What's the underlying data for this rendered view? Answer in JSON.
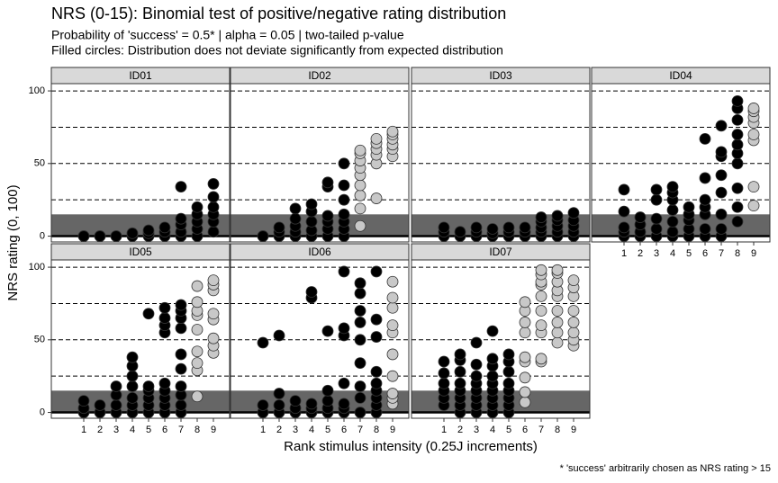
{
  "chart_data": {
    "type": "scatter",
    "title": "NRS (0-15): Binomial test of positive/negative rating distribution",
    "subtitle": [
      "Probability of 'success' = 0.5* | alpha = 0.05 | two-tailed p-value",
      "Filled circles: Distribution does not deviate significantly from expected distribution"
    ],
    "xlabel": "Rank stimulus intensity (0.25J increments)",
    "ylabel": "NRS rating (0, 100)",
    "caption": "* 'success' arbitrarily chosen as NRS rating > 15",
    "xlim": [
      -1,
      10
    ],
    "xticks": [
      1,
      2,
      3,
      4,
      5,
      6,
      7,
      8,
      9
    ],
    "ylim": [
      -4,
      105
    ],
    "yticks": [
      0,
      50,
      100
    ],
    "hlines": [
      25,
      50,
      75,
      100
    ],
    "band": [
      0,
      15
    ],
    "band_color": "#666666",
    "panels": [
      {
        "name": "ID01",
        "groups": [
          {
            "x": 1,
            "color": "#000000",
            "values": [
              0,
              0
            ]
          },
          {
            "x": 2,
            "color": "#000000",
            "values": [
              0,
              0
            ]
          },
          {
            "x": 3,
            "color": "#000000",
            "values": [
              0,
              0
            ]
          },
          {
            "x": 4,
            "color": "#000000",
            "values": [
              0,
              2
            ]
          },
          {
            "x": 5,
            "color": "#000000",
            "values": [
              0,
              2,
              4
            ]
          },
          {
            "x": 6,
            "color": "#000000",
            "values": [
              0,
              3,
              6
            ]
          },
          {
            "x": 7,
            "color": "#000000",
            "values": [
              0,
              3,
              8,
              12,
              34
            ]
          },
          {
            "x": 8,
            "color": "#000000",
            "values": [
              0,
              5,
              10,
              15,
              20
            ]
          },
          {
            "x": 9,
            "color": "#000000",
            "values": [
              3,
              10,
              15,
              20,
              27,
              36
            ]
          }
        ]
      },
      {
        "name": "ID02",
        "groups": [
          {
            "x": 1,
            "color": "#000000",
            "values": [
              0,
              0
            ]
          },
          {
            "x": 2,
            "color": "#000000",
            "values": [
              0,
              3,
              6
            ]
          },
          {
            "x": 3,
            "color": "#000000",
            "values": [
              0,
              3,
              7,
              12,
              19
            ]
          },
          {
            "x": 4,
            "color": "#000000",
            "values": [
              0,
              4,
              10,
              17,
              22
            ]
          },
          {
            "x": 5,
            "color": "#000000",
            "values": [
              0,
              5,
              10,
              14,
              34,
              37
            ]
          },
          {
            "x": 6,
            "color": "#000000",
            "values": [
              0,
              5,
              10,
              15,
              25,
              35,
              50
            ]
          },
          {
            "x": 7,
            "color": "#c8c8c8",
            "values": [
              7,
              19,
              28,
              35,
              42,
              47,
              52,
              57,
              59
            ]
          },
          {
            "x": 8,
            "color": "#c8c8c8",
            "values": [
              26,
              50,
              56,
              60,
              64,
              67
            ]
          },
          {
            "x": 9,
            "color": "#c8c8c8",
            "values": [
              55,
              60,
              63,
              67,
              70,
              72
            ]
          }
        ]
      },
      {
        "name": "ID03",
        "groups": [
          {
            "x": 1,
            "color": "#000000",
            "values": [
              0,
              3,
              6
            ]
          },
          {
            "x": 2,
            "color": "#000000",
            "values": [
              0,
              3
            ]
          },
          {
            "x": 3,
            "color": "#000000",
            "values": [
              0,
              3,
              6
            ]
          },
          {
            "x": 4,
            "color": "#000000",
            "values": [
              0,
              2,
              5
            ]
          },
          {
            "x": 5,
            "color": "#000000",
            "values": [
              0,
              3,
              6
            ]
          },
          {
            "x": 6,
            "color": "#000000",
            "values": [
              0,
              3,
              6
            ]
          },
          {
            "x": 7,
            "color": "#000000",
            "values": [
              0,
              3,
              6,
              10,
              13
            ]
          },
          {
            "x": 8,
            "color": "#000000",
            "values": [
              0,
              3,
              7,
              11,
              14
            ]
          },
          {
            "x": 9,
            "color": "#000000",
            "values": [
              0,
              3,
              7,
              11,
              16
            ]
          }
        ]
      },
      {
        "name": "ID04",
        "groups": [
          {
            "x": 1,
            "color": "#000000",
            "values": [
              0,
              3,
              6,
              17,
              32
            ]
          },
          {
            "x": 2,
            "color": "#000000",
            "values": [
              0,
              3,
              8,
              13
            ]
          },
          {
            "x": 3,
            "color": "#000000",
            "values": [
              0,
              5,
              12,
              25,
              32
            ]
          },
          {
            "x": 4,
            "color": "#000000",
            "values": [
              0,
              3,
              10,
              18,
              25,
              30,
              34
            ]
          },
          {
            "x": 5,
            "color": "#000000",
            "values": [
              0,
              5,
              11,
              15,
              20
            ]
          },
          {
            "x": 6,
            "color": "#000000",
            "values": [
              0,
              5,
              15,
              20,
              25,
              40,
              67
            ]
          },
          {
            "x": 7,
            "color": "#000000",
            "values": [
              0,
              5,
              15,
              30,
              42,
              55,
              58,
              76
            ]
          },
          {
            "x": 8,
            "color": "#000000",
            "values": [
              10,
              20,
              33,
              50,
              57,
              63,
              70,
              80,
              88,
              93
            ]
          },
          {
            "x": 9,
            "color": "#c8c8c8",
            "values": [
              21,
              34,
              66,
              70,
              78,
              82,
              86,
              88
            ]
          }
        ]
      },
      {
        "name": "ID05",
        "groups": [
          {
            "x": 1,
            "color": "#000000",
            "values": [
              0,
              3,
              8
            ]
          },
          {
            "x": 2,
            "color": "#000000",
            "values": [
              0,
              5
            ]
          },
          {
            "x": 3,
            "color": "#000000",
            "values": [
              0,
              5,
              12,
              18
            ]
          },
          {
            "x": 4,
            "color": "#000000",
            "values": [
              0,
              5,
              10,
              18,
              25,
              32,
              38
            ]
          },
          {
            "x": 5,
            "color": "#000000",
            "values": [
              0,
              5,
              10,
              15,
              18,
              68
            ]
          },
          {
            "x": 6,
            "color": "#000000",
            "values": [
              0,
              5,
              10,
              15,
              20,
              55,
              60,
              65,
              72
            ]
          },
          {
            "x": 7,
            "color": "#000000",
            "values": [
              0,
              5,
              12,
              18,
              30,
              40,
              58,
              65,
              70,
              74
            ]
          },
          {
            "x": 8,
            "color": "#c8c8c8",
            "values": [
              11,
              29,
              34,
              42,
              57,
              67,
              70,
              76,
              87
            ]
          },
          {
            "x": 9,
            "color": "#c8c8c8",
            "values": [
              41,
              46,
              51,
              64,
              68,
              84,
              88,
              91
            ]
          }
        ]
      },
      {
        "name": "ID06",
        "groups": [
          {
            "x": 1,
            "color": "#000000",
            "values": [
              0,
              5,
              48
            ]
          },
          {
            "x": 2,
            "color": "#000000",
            "values": [
              0,
              5,
              13,
              53
            ]
          },
          {
            "x": 3,
            "color": "#000000",
            "values": [
              0,
              3,
              8
            ]
          },
          {
            "x": 4,
            "color": "#000000",
            "values": [
              0,
              3,
              6,
              79,
              83
            ]
          },
          {
            "x": 5,
            "color": "#000000",
            "values": [
              0,
              3,
              8,
              15,
              56
            ]
          },
          {
            "x": 6,
            "color": "#000000",
            "values": [
              0,
              3,
              6,
              20,
              53,
              58,
              97
            ]
          },
          {
            "x": 7,
            "color": "#000000",
            "values": [
              0,
              10,
              18,
              34,
              50,
              62,
              70,
              82,
              89
            ]
          },
          {
            "x": 8,
            "color": "#000000",
            "values": [
              0,
              5,
              10,
              15,
              20,
              28,
              52,
              64,
              97
            ]
          },
          {
            "x": 9,
            "color": "#c8c8c8",
            "values": [
              6,
              10,
              13,
              25,
              40,
              55,
              60,
              72,
              79,
              90
            ]
          }
        ]
      },
      {
        "name": "ID07",
        "groups": [
          {
            "x": 1,
            "color": "#000000",
            "values": [
              5,
              10,
              15,
              20,
              27,
              35
            ]
          },
          {
            "x": 2,
            "color": "#000000",
            "values": [
              0,
              5,
              10,
              15,
              20,
              28,
              36,
              40
            ]
          },
          {
            "x": 3,
            "color": "#000000",
            "values": [
              0,
              5,
              10,
              15,
              20,
              25,
              33,
              48
            ]
          },
          {
            "x": 4,
            "color": "#000000",
            "values": [
              0,
              5,
              10,
              15,
              20,
              25,
              32,
              37,
              56
            ]
          },
          {
            "x": 5,
            "color": "#000000",
            "values": [
              0,
              5,
              10,
              15,
              20,
              28,
              35,
              40
            ]
          },
          {
            "x": 6,
            "color": "#c8c8c8",
            "values": [
              7,
              14,
              24,
              35,
              38,
              55,
              62,
              70,
              76
            ]
          },
          {
            "x": 7,
            "color": "#c8c8c8",
            "values": [
              35,
              37,
              55,
              60,
              70,
              80,
              88,
              90,
              95,
              98
            ]
          },
          {
            "x": 8,
            "color": "#c8c8c8",
            "values": [
              48,
              55,
              62,
              70,
              80,
              84,
              90,
              96,
              98
            ]
          },
          {
            "x": 9,
            "color": "#c8c8c8",
            "values": [
              46,
              50,
              55,
              62,
              70,
              80,
              86,
              91
            ]
          }
        ]
      }
    ]
  }
}
